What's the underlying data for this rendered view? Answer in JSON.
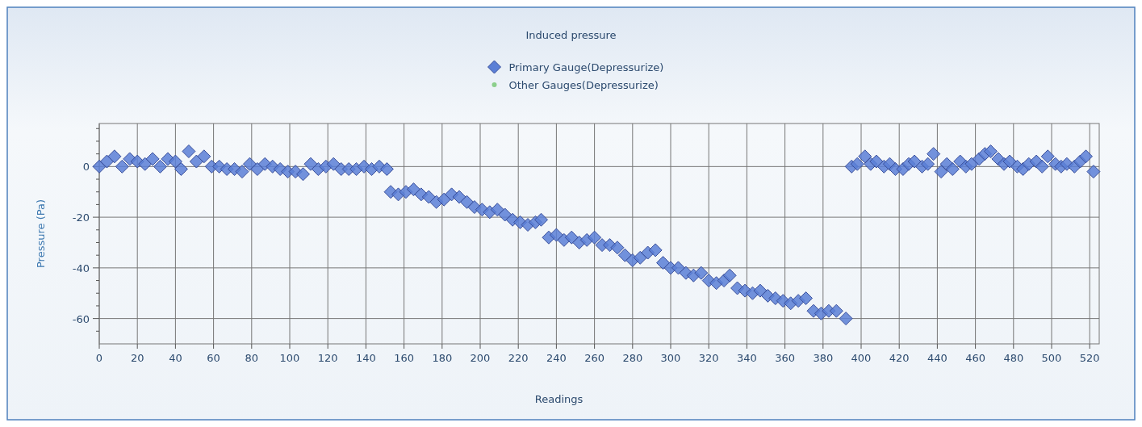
{
  "chart_data": {
    "type": "scatter",
    "title": "Induced pressure",
    "xlabel": "Readings",
    "ylabel": "Pressure (Pa)",
    "xlim": [
      0,
      525
    ],
    "xticks": [
      0,
      20,
      40,
      60,
      80,
      100,
      120,
      140,
      160,
      180,
      200,
      220,
      240,
      260,
      280,
      300,
      320,
      340,
      360,
      380,
      400,
      420,
      440,
      460,
      480,
      500,
      520
    ],
    "ylim": [
      -70,
      17
    ],
    "yticks": [
      {
        "value": -65,
        "label": null
      },
      -60,
      {
        "value": -55,
        "label": null
      },
      {
        "value": -50,
        "label": null
      },
      {
        "value": -45,
        "label": null
      },
      -40,
      {
        "value": -35,
        "label": null
      },
      {
        "value": -30,
        "label": null
      },
      {
        "value": -25,
        "label": null
      },
      -20,
      {
        "value": -15,
        "label": null
      },
      {
        "value": -10,
        "label": null
      },
      {
        "value": -5,
        "label": null
      },
      0,
      {
        "value": 5,
        "label": null
      },
      {
        "value": 10,
        "label": null
      },
      {
        "value": 15,
        "label": null
      }
    ],
    "grid": true,
    "legend": "top",
    "marker": "diamond",
    "series": [
      {
        "name": "Primary Gauge(Depressurize)",
        "color": "#5b7fd6",
        "x": [
          0,
          4,
          8,
          12,
          16,
          20,
          24,
          28,
          32,
          36,
          40,
          43,
          47,
          51,
          55,
          59,
          63,
          67,
          71,
          75,
          79,
          83,
          87,
          91,
          95,
          99,
          103,
          107,
          111,
          115,
          119,
          123,
          127,
          131,
          135,
          139,
          143,
          147,
          151,
          153,
          157,
          161,
          165,
          169,
          173,
          177,
          181,
          185,
          189,
          193,
          197,
          201,
          205,
          209,
          213,
          217,
          221,
          225,
          229,
          232,
          236,
          240,
          244,
          248,
          252,
          256,
          260,
          264,
          268,
          272,
          276,
          280,
          284,
          288,
          292,
          296,
          300,
          304,
          308,
          312,
          316,
          320,
          324,
          328,
          331,
          335,
          339,
          343,
          347,
          351,
          355,
          359,
          363,
          367,
          371,
          375,
          379,
          383,
          387,
          392,
          395,
          398,
          402,
          405,
          408,
          412,
          415,
          418,
          422,
          425,
          428,
          432,
          435,
          438,
          442,
          445,
          448,
          452,
          455,
          458,
          462,
          465,
          468,
          472,
          475,
          478,
          482,
          485,
          488,
          492,
          495,
          498,
          502,
          505,
          508,
          512,
          515,
          518,
          522
        ],
        "values": [
          0,
          2,
          4,
          0,
          3,
          2,
          1,
          3,
          0,
          3,
          2,
          -1,
          6,
          2,
          4,
          0,
          0,
          -1,
          -1,
          -2,
          1,
          -1,
          1,
          0,
          -1,
          -2,
          -2,
          -3,
          1,
          -1,
          0,
          1,
          -1,
          -1,
          -1,
          0,
          -1,
          0,
          -1,
          -10,
          -11,
          -10,
          -9,
          -11,
          -12,
          -14,
          -13,
          -11,
          -12,
          -14,
          -16,
          -17,
          -18,
          -17,
          -19,
          -21,
          -22,
          -23,
          -22,
          -21,
          -28,
          -27,
          -29,
          -28,
          -30,
          -29,
          -28,
          -31,
          -31,
          -32,
          -35,
          -37,
          -36,
          -34,
          -33,
          -38,
          -40,
          -40,
          -42,
          -43,
          -42,
          -45,
          -46,
          -45,
          -43,
          -48,
          -49,
          -50,
          -49,
          -51,
          -52,
          -53,
          -54,
          -53,
          -52,
          -57,
          -58,
          -57,
          -57,
          -60,
          0,
          1,
          4,
          1,
          2,
          0,
          1,
          -1,
          -1,
          1,
          2,
          0,
          1,
          5,
          -2,
          1,
          -1,
          2,
          0,
          1,
          3,
          5,
          6,
          3,
          1,
          2,
          0,
          -1,
          1,
          2,
          0,
          4,
          1,
          0,
          1,
          0,
          2,
          4,
          -2
        ]
      },
      {
        "name": "Other Gauges(Depressurize)",
        "color": "#8ccf8c"
      }
    ]
  }
}
